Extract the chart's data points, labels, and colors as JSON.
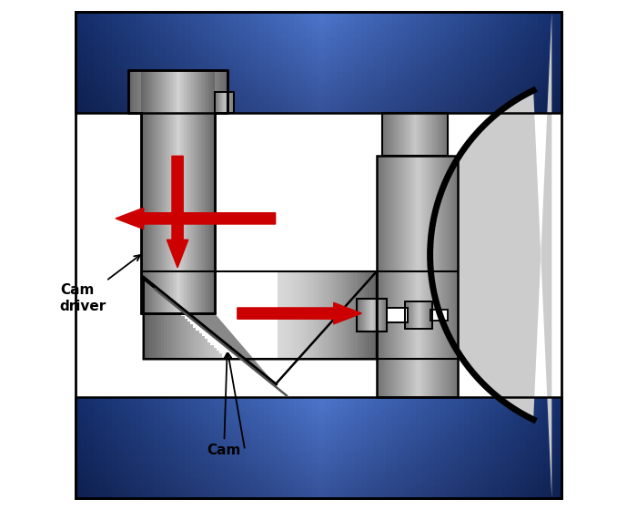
{
  "fig_width": 7.0,
  "fig_height": 5.6,
  "dpi": 100,
  "bg_color": "#ffffff",
  "red_arrow_color": "#cc0000",
  "label_fontsize": 11,
  "cam_label": "Cam",
  "cam_driver_label": "Cam\ndriver"
}
